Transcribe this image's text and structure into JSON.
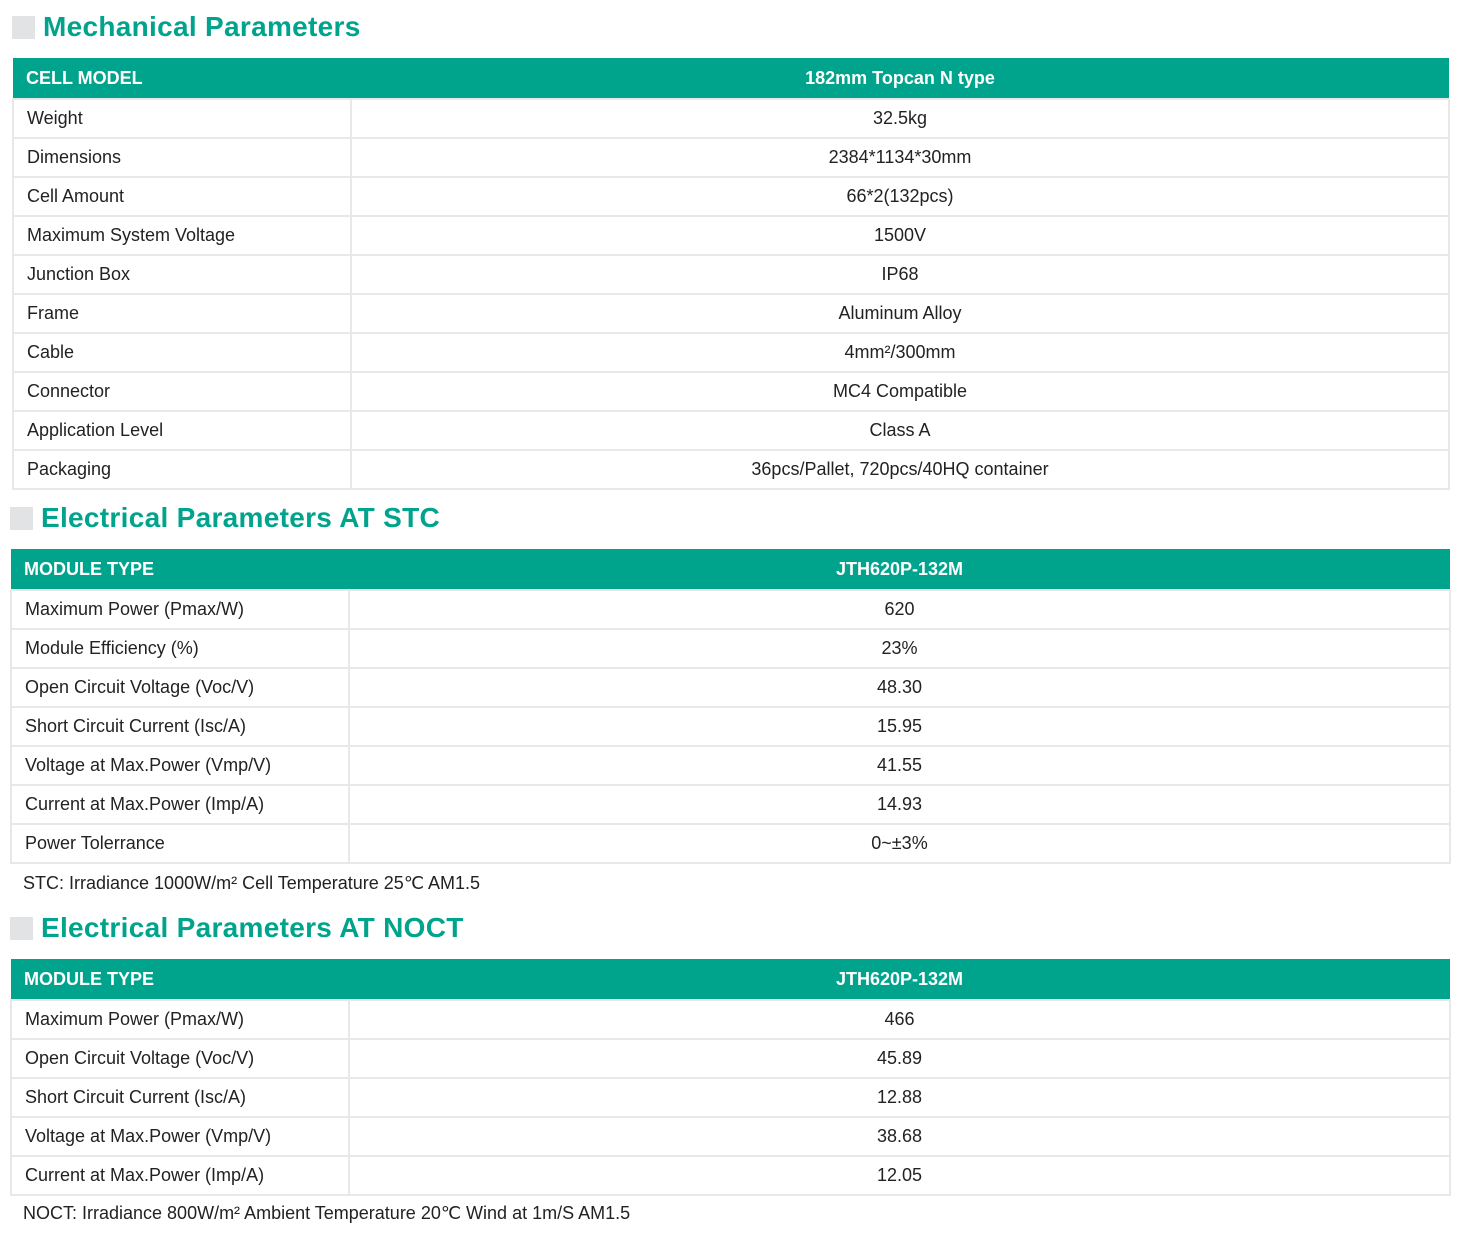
{
  "colors": {
    "accent": "#00A38C",
    "marker": "#E2E3E5"
  },
  "mechanical": {
    "title": "Mechanical Parameters",
    "header": [
      "CELL MODEL",
      "182mm Topcan N type"
    ],
    "rows": [
      [
        "Weight",
        "32.5kg"
      ],
      [
        "Dimensions",
        "2384*1134*30mm"
      ],
      [
        "Cell Amount",
        "66*2(132pcs)"
      ],
      [
        "Maximum System Voltage",
        "1500V"
      ],
      [
        "Junction Box",
        "IP68"
      ],
      [
        "Frame",
        "Aluminum Alloy"
      ],
      [
        "Cable",
        "4mm²/300mm"
      ],
      [
        "Connector",
        "MC4 Compatible"
      ],
      [
        "Application Level",
        "Class A"
      ],
      [
        "Packaging",
        "36pcs/Pallet, 720pcs/40HQ container"
      ]
    ]
  },
  "stc": {
    "title": "Electrical Parameters AT STC",
    "header": [
      "MODULE TYPE",
      "JTH620P-132M"
    ],
    "rows": [
      [
        "Maximum Power (Pmax/W)",
        "620"
      ],
      [
        "Module Efficiency (%)",
        "23%"
      ],
      [
        "Open Circuit Voltage (Voc/V)",
        "48.30"
      ],
      [
        "Short Circuit Current (Isc/A)",
        "15.95"
      ],
      [
        "Voltage at Max.Power (Vmp/V)",
        "41.55"
      ],
      [
        "Current at Max.Power (Imp/A)",
        "14.93"
      ],
      [
        "Power Tolerrance",
        "0~±3%"
      ]
    ],
    "note": "STC: Irradiance 1000W/m²  Cell Temperature 25℃ AM1.5"
  },
  "noct": {
    "title": "Electrical Parameters AT NOCT",
    "header": [
      "MODULE TYPE",
      "JTH620P-132M"
    ],
    "rows": [
      [
        "Maximum Power (Pmax/W)",
        "466"
      ],
      [
        "Open Circuit Voltage (Voc/V)",
        "45.89"
      ],
      [
        "Short Circuit Current (Isc/A)",
        "12.88"
      ],
      [
        "Voltage at Max.Power (Vmp/V)",
        "38.68"
      ],
      [
        "Current at Max.Power (Imp/A)",
        "12.05"
      ]
    ],
    "note": "NOCT: Irradiance 800W/m²  Ambient Temperature 20℃ Wind at 1m/S AM1.5"
  }
}
